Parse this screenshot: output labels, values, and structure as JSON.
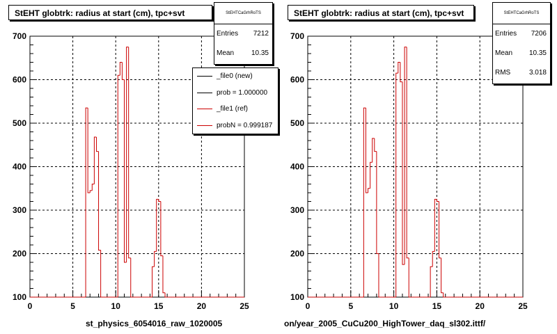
{
  "colors": {
    "reference": "#cc0000",
    "new": "#000000",
    "frame": "#000000",
    "grid": "#000000"
  },
  "chart_data": [
    {
      "type": "bar",
      "title": "StEHT globtrk: radius at start (cm), tpc+svt",
      "xlabel": "st_physics_6054016_raw_1020005",
      "ylabel": "",
      "xlim": [
        0,
        25
      ],
      "ylim": [
        100,
        700
      ],
      "x_ticks": [
        "0",
        "5",
        "10",
        "15",
        "20",
        "25"
      ],
      "y_ticks": [
        "100",
        "200",
        "300",
        "400",
        "500",
        "600",
        "700"
      ],
      "grid": true,
      "bin_width": 0.25,
      "series": [
        {
          "name": "_file1 (ref)",
          "x": [
            0,
            0.25,
            0.5,
            0.75,
            1,
            1.25,
            1.5,
            1.75,
            2,
            2.25,
            2.5,
            2.75,
            3,
            3.25,
            3.5,
            3.75,
            4,
            4.25,
            4.5,
            4.75,
            5,
            5.25,
            5.5,
            5.75,
            6,
            6.25,
            6.5,
            6.75,
            7,
            7.25,
            7.5,
            7.75,
            8,
            8.25,
            8.5,
            8.75,
            9,
            9.25,
            9.5,
            9.75,
            10,
            10.25,
            10.5,
            10.75,
            11,
            11.25,
            11.5,
            11.75,
            12,
            12.25,
            12.5,
            12.75,
            13,
            13.25,
            13.5,
            13.75,
            14,
            14.25,
            14.5,
            14.75,
            15,
            15.25,
            15.5,
            15.75,
            16,
            16.25,
            16.5,
            16.75,
            17,
            17.25,
            17.5,
            17.75,
            18,
            18.25,
            18.5,
            18.75,
            19,
            19.25,
            19.5,
            19.75,
            20,
            20.25,
            20.5,
            20.75,
            21,
            21.25,
            21.5,
            21.75,
            22,
            22.25,
            22.5,
            22.75,
            23,
            23.25,
            23.5,
            23.75,
            24,
            24.25,
            24.5,
            24.75
          ],
          "values": [
            100,
            100,
            100,
            100,
            100,
            100,
            100,
            100,
            100,
            100,
            100,
            100,
            100,
            100,
            100,
            100,
            100,
            100,
            100,
            100,
            100,
            100,
            100,
            100,
            100,
            100,
            535,
            340,
            345,
            360,
            468,
            435,
            208,
            100,
            100,
            100,
            100,
            100,
            100,
            100,
            100,
            610,
            640,
            600,
            180,
            675,
            190,
            100,
            100,
            100,
            100,
            100,
            100,
            100,
            100,
            100,
            100,
            170,
            205,
            325,
            320,
            195,
            110,
            100,
            100,
            100,
            100,
            100,
            100,
            100,
            100,
            100,
            100,
            100,
            100,
            100,
            100,
            100,
            100,
            100,
            100,
            100,
            100,
            100,
            100,
            100,
            100,
            100,
            100,
            100,
            100,
            100,
            100,
            100,
            100,
            100,
            100,
            100,
            100,
            100
          ]
        }
      ],
      "stats": {
        "name": "StEHTCaGrhRoTS",
        "entries_label": "Entries",
        "entries": "7212",
        "mean_label": "Mean",
        "mean": "10.35"
      },
      "legend": [
        {
          "label": "_file0 (new)",
          "color": "#000000"
        },
        {
          "label": "prob = 1.000000",
          "color": "#000000"
        },
        {
          "label": "_file1 (ref)",
          "color": "#cc0000"
        },
        {
          "label": "probN = 0.999187",
          "color": "#cc0000"
        }
      ]
    },
    {
      "type": "bar",
      "title": "StEHT globtrk: radius at start (cm), tpc+svt",
      "xlabel": "on/year_2005_CuCu200_HighTower_daq_sl302.ittf/",
      "ylabel": "",
      "xlim": [
        0,
        25
      ],
      "ylim": [
        100,
        700
      ],
      "x_ticks": [
        "0",
        "5",
        "10",
        "15",
        "20",
        "25"
      ],
      "y_ticks": [
        "100",
        "200",
        "300",
        "400",
        "500",
        "600",
        "700"
      ],
      "grid": true,
      "bin_width": 0.25,
      "series": [
        {
          "name": "",
          "x": [
            0,
            0.25,
            0.5,
            0.75,
            1,
            1.25,
            1.5,
            1.75,
            2,
            2.25,
            2.5,
            2.75,
            3,
            3.25,
            3.5,
            3.75,
            4,
            4.25,
            4.5,
            4.75,
            5,
            5.25,
            5.5,
            5.75,
            6,
            6.25,
            6.5,
            6.75,
            7,
            7.25,
            7.5,
            7.75,
            8,
            8.25,
            8.5,
            8.75,
            9,
            9.25,
            9.5,
            9.75,
            10,
            10.25,
            10.5,
            10.75,
            11,
            11.25,
            11.5,
            11.75,
            12,
            12.25,
            12.5,
            12.75,
            13,
            13.25,
            13.5,
            13.75,
            14,
            14.25,
            14.5,
            14.75,
            15,
            15.25,
            15.5,
            15.75,
            16,
            16.25,
            16.5,
            16.75,
            17,
            17.25,
            17.5,
            17.75,
            18,
            18.25,
            18.5,
            18.75,
            19,
            19.25,
            19.5,
            19.75,
            20,
            20.25,
            20.5,
            20.75,
            21,
            21.25,
            21.5,
            21.75,
            22,
            22.25,
            22.5,
            22.75,
            23,
            23.25,
            23.5,
            23.75,
            24,
            24.25,
            24.5,
            24.75
          ],
          "values": [
            100,
            100,
            100,
            100,
            100,
            100,
            100,
            100,
            100,
            100,
            100,
            100,
            100,
            100,
            100,
            100,
            100,
            100,
            100,
            100,
            100,
            100,
            100,
            100,
            100,
            100,
            535,
            340,
            350,
            410,
            465,
            435,
            200,
            100,
            100,
            100,
            100,
            100,
            100,
            100,
            100,
            615,
            640,
            595,
            175,
            675,
            190,
            100,
            100,
            100,
            100,
            100,
            100,
            100,
            100,
            100,
            100,
            170,
            205,
            325,
            320,
            190,
            110,
            100,
            100,
            100,
            100,
            100,
            100,
            100,
            100,
            100,
            100,
            100,
            100,
            100,
            100,
            100,
            100,
            100,
            100,
            100,
            100,
            100,
            100,
            100,
            100,
            100,
            100,
            100,
            100,
            100,
            100,
            100,
            100,
            100,
            100,
            100,
            100,
            100
          ]
        }
      ],
      "stats": {
        "name": "StEHTCaGrhRoTS",
        "entries_label": "Entries",
        "entries": "7206",
        "mean_label": "Mean",
        "mean": "10.35",
        "rms_label": "RMS",
        "rms": "3.018"
      }
    }
  ]
}
